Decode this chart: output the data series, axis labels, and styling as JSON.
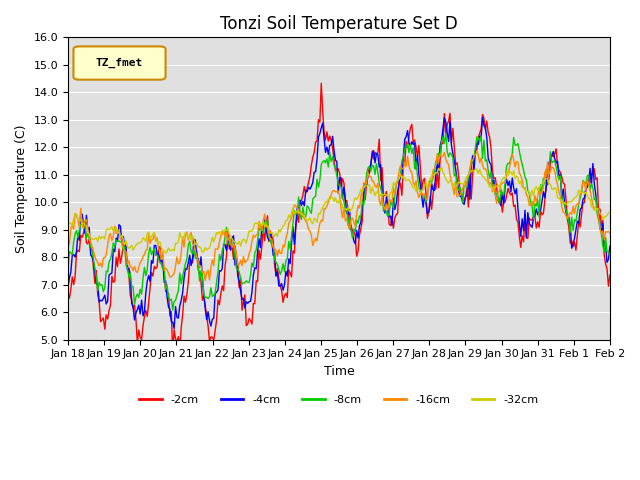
{
  "title": "Tonzi Soil Temperature Set D",
  "xlabel": "Time",
  "ylabel": "Soil Temperature (C)",
  "ylim": [
    5.0,
    16.0
  ],
  "yticks": [
    5.0,
    6.0,
    7.0,
    8.0,
    9.0,
    10.0,
    11.0,
    12.0,
    13.0,
    14.0,
    15.0,
    16.0
  ],
  "bg_color": "#e0e0e0",
  "legend_label": "TZ_fmet",
  "series_colors": {
    "-2cm": "#ff0000",
    "-4cm": "#0000ff",
    "-8cm": "#00cc00",
    "-16cm": "#ff8800",
    "-32cm": "#cccc00"
  },
  "series_labels": [
    "-2cm",
    "-4cm",
    "-8cm",
    "-16cm",
    "-32cm"
  ],
  "tick_labels": [
    "Jan 18",
    "Jan 19",
    "Jan 20",
    "Jan 21",
    "Jan 22",
    "Jan 23",
    "Jan 24",
    "Jan 25",
    "Jan 26",
    "Jan 27",
    "Jan 28",
    "Jan 29",
    "Jan 30",
    "Jan 31",
    "Feb 1",
    "Feb 2"
  ],
  "n_days": 16,
  "title_fontsize": 12,
  "axis_label_fontsize": 9,
  "tick_fontsize": 8
}
